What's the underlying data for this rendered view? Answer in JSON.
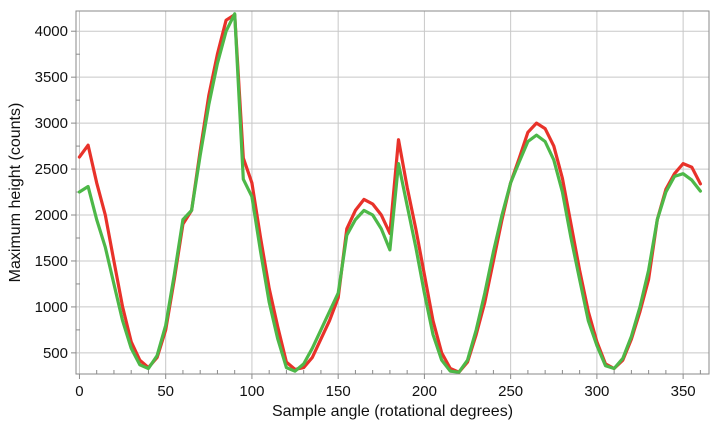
{
  "chart_data": {
    "type": "line",
    "title": "",
    "xlabel": "Sample angle (rotational degrees)",
    "ylabel": "Maximum height (counts)",
    "xlim": [
      -2,
      365
    ],
    "ylim": [
      270,
      4220
    ],
    "xticks": [
      0,
      50,
      100,
      150,
      200,
      250,
      300,
      350
    ],
    "yticks": [
      500,
      1000,
      1500,
      2000,
      2500,
      3000,
      3500,
      4000
    ],
    "grid": true,
    "legend": "none",
    "series": [
      {
        "color": "#e8322a",
        "points": [
          [
            0,
            2630
          ],
          [
            5,
            2760
          ],
          [
            10,
            2350
          ],
          [
            15,
            2000
          ],
          [
            20,
            1500
          ],
          [
            25,
            1000
          ],
          [
            30,
            620
          ],
          [
            35,
            420
          ],
          [
            40,
            340
          ],
          [
            45,
            450
          ],
          [
            50,
            750
          ],
          [
            55,
            1300
          ],
          [
            60,
            1900
          ],
          [
            65,
            2050
          ],
          [
            70,
            2700
          ],
          [
            75,
            3300
          ],
          [
            80,
            3750
          ],
          [
            85,
            4120
          ],
          [
            90,
            4180
          ],
          [
            95,
            2620
          ],
          [
            100,
            2350
          ],
          [
            105,
            1750
          ],
          [
            110,
            1200
          ],
          [
            115,
            780
          ],
          [
            120,
            400
          ],
          [
            125,
            320
          ],
          [
            130,
            340
          ],
          [
            135,
            450
          ],
          [
            140,
            650
          ],
          [
            145,
            850
          ],
          [
            150,
            1100
          ],
          [
            155,
            1850
          ],
          [
            160,
            2050
          ],
          [
            165,
            2170
          ],
          [
            170,
            2120
          ],
          [
            175,
            2000
          ],
          [
            180,
            1800
          ],
          [
            185,
            2820
          ],
          [
            190,
            2300
          ],
          [
            195,
            1850
          ],
          [
            200,
            1350
          ],
          [
            205,
            850
          ],
          [
            210,
            500
          ],
          [
            215,
            330
          ],
          [
            220,
            290
          ],
          [
            225,
            400
          ],
          [
            230,
            700
          ],
          [
            235,
            1050
          ],
          [
            240,
            1500
          ],
          [
            245,
            1950
          ],
          [
            250,
            2350
          ],
          [
            255,
            2620
          ],
          [
            260,
            2900
          ],
          [
            265,
            3000
          ],
          [
            270,
            2940
          ],
          [
            275,
            2750
          ],
          [
            280,
            2400
          ],
          [
            285,
            1900
          ],
          [
            290,
            1400
          ],
          [
            295,
            950
          ],
          [
            300,
            620
          ],
          [
            305,
            380
          ],
          [
            310,
            330
          ],
          [
            315,
            420
          ],
          [
            320,
            650
          ],
          [
            325,
            950
          ],
          [
            330,
            1300
          ],
          [
            335,
            1950
          ],
          [
            340,
            2280
          ],
          [
            345,
            2450
          ],
          [
            350,
            2560
          ],
          [
            355,
            2520
          ],
          [
            360,
            2340
          ]
        ]
      },
      {
        "color": "#4db848",
        "points": [
          [
            0,
            2250
          ],
          [
            5,
            2310
          ],
          [
            10,
            1950
          ],
          [
            15,
            1650
          ],
          [
            20,
            1250
          ],
          [
            25,
            850
          ],
          [
            30,
            550
          ],
          [
            35,
            370
          ],
          [
            40,
            330
          ],
          [
            45,
            470
          ],
          [
            50,
            800
          ],
          [
            55,
            1350
          ],
          [
            60,
            1950
          ],
          [
            65,
            2050
          ],
          [
            70,
            2650
          ],
          [
            75,
            3200
          ],
          [
            80,
            3650
          ],
          [
            85,
            4000
          ],
          [
            90,
            4190
          ],
          [
            95,
            2390
          ],
          [
            100,
            2200
          ],
          [
            105,
            1600
          ],
          [
            110,
            1050
          ],
          [
            115,
            650
          ],
          [
            120,
            340
          ],
          [
            125,
            300
          ],
          [
            130,
            380
          ],
          [
            135,
            550
          ],
          [
            140,
            750
          ],
          [
            145,
            950
          ],
          [
            150,
            1150
          ],
          [
            155,
            1780
          ],
          [
            160,
            1950
          ],
          [
            165,
            2050
          ],
          [
            170,
            2000
          ],
          [
            175,
            1850
          ],
          [
            180,
            1620
          ],
          [
            185,
            2560
          ],
          [
            190,
            2100
          ],
          [
            195,
            1650
          ],
          [
            200,
            1150
          ],
          [
            205,
            700
          ],
          [
            210,
            420
          ],
          [
            215,
            300
          ],
          [
            220,
            290
          ],
          [
            225,
            420
          ],
          [
            230,
            750
          ],
          [
            235,
            1150
          ],
          [
            240,
            1600
          ],
          [
            245,
            2000
          ],
          [
            250,
            2350
          ],
          [
            255,
            2580
          ],
          [
            260,
            2800
          ],
          [
            265,
            2870
          ],
          [
            270,
            2800
          ],
          [
            275,
            2600
          ],
          [
            280,
            2250
          ],
          [
            285,
            1750
          ],
          [
            290,
            1300
          ],
          [
            295,
            850
          ],
          [
            300,
            580
          ],
          [
            305,
            360
          ],
          [
            310,
            330
          ],
          [
            315,
            440
          ],
          [
            320,
            680
          ],
          [
            325,
            1000
          ],
          [
            330,
            1400
          ],
          [
            335,
            1950
          ],
          [
            340,
            2250
          ],
          [
            345,
            2420
          ],
          [
            350,
            2450
          ],
          [
            355,
            2380
          ],
          [
            360,
            2260
          ]
        ]
      }
    ]
  }
}
